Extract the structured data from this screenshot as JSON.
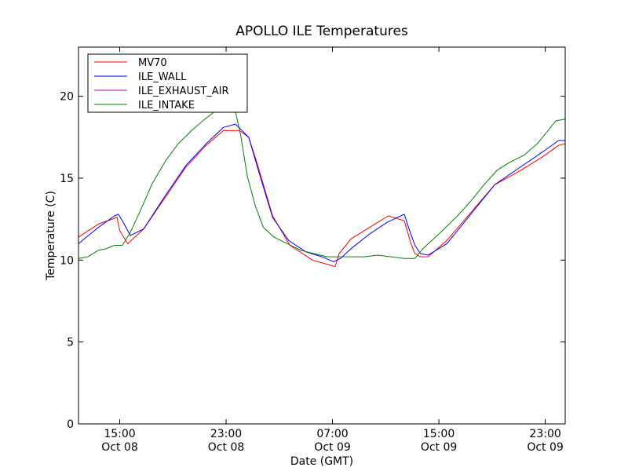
{
  "chart_data": {
    "type": "line",
    "title": "APOLLO ILE Temperatures",
    "xlabel": "Date (GMT)",
    "ylabel": "Temperature (C)",
    "ylim": [
      0,
      23
    ],
    "xlim": [
      11.9,
      48.5
    ],
    "grid": false,
    "legend_placement": "top-left",
    "y_ticks": [
      "0",
      "5",
      "10",
      "15",
      "20"
    ],
    "y_tick_values": [
      0,
      5,
      10,
      15,
      20
    ],
    "x_ticks": [
      {
        "t": 15,
        "time": "15:00",
        "date": "Oct 08"
      },
      {
        "t": 23,
        "time": "23:00",
        "date": "Oct 08"
      },
      {
        "t": 31,
        "time": "07:00",
        "date": "Oct 09"
      },
      {
        "t": 39,
        "time": "15:00",
        "date": "Oct 09"
      },
      {
        "t": 47,
        "time": "23:00",
        "date": "Oct 09"
      }
    ],
    "series": [
      {
        "name": "MV70",
        "color": "#ff0000",
        "x": [
          11.9,
          13.4,
          14.8,
          15.0,
          15.6,
          16.8,
          18.4,
          20.0,
          21.5,
          22.8,
          24.0,
          24.7,
          25.3,
          26.5,
          27.8,
          29.5,
          30.8,
          31.2,
          31.5,
          32.4,
          33.8,
          35.2,
          36.4,
          36.9,
          37.2,
          37.6,
          38.2,
          39.6,
          41.4,
          43.2,
          45.0,
          46.8,
          48.0,
          48.5
        ],
        "y": [
          11.4,
          12.2,
          12.6,
          11.8,
          11.0,
          11.9,
          13.8,
          15.7,
          17.0,
          17.9,
          17.9,
          17.5,
          16.0,
          12.7,
          10.9,
          10.0,
          9.7,
          9.6,
          10.4,
          11.3,
          12.0,
          12.7,
          12.4,
          11.0,
          10.4,
          10.2,
          10.2,
          11.2,
          12.9,
          14.6,
          15.4,
          16.3,
          17.0,
          17.1
        ]
      },
      {
        "name": "ILE_WALL",
        "color": "#0000ff",
        "x": [
          11.9,
          13.4,
          14.6,
          14.9,
          15.2,
          15.8,
          16.8,
          18.4,
          20.0,
          21.5,
          22.8,
          23.7,
          24.7,
          25.6,
          26.5,
          27.7,
          29.0,
          30.2,
          31.1,
          31.6,
          32.4,
          33.8,
          35.1,
          36.4,
          36.8,
          37.2,
          37.6,
          38.2,
          39.6,
          41.4,
          43.2,
          45.0,
          46.8,
          48.0,
          48.5
        ],
        "y": [
          11.0,
          12.0,
          12.7,
          12.8,
          12.4,
          11.5,
          11.9,
          13.9,
          15.8,
          17.1,
          18.1,
          18.3,
          17.5,
          15.0,
          12.6,
          11.2,
          10.5,
          10.2,
          9.9,
          10.1,
          10.7,
          11.6,
          12.3,
          12.8,
          11.8,
          10.9,
          10.4,
          10.3,
          11.0,
          12.8,
          14.6,
          15.6,
          16.6,
          17.3,
          17.3
        ]
      },
      {
        "name": "ILE_EXHAUST_AIR",
        "color": "#bf00bf",
        "x": [],
        "y": []
      },
      {
        "name": "ILE_INTAKE",
        "color": "#008000",
        "x": [
          11.9,
          12.6,
          13.4,
          14.0,
          14.6,
          15.2,
          15.8,
          16.6,
          17.4,
          18.4,
          19.4,
          20.4,
          21.4,
          22.2,
          22.9,
          23.5,
          24.1,
          24.6,
          25.2,
          25.8,
          26.6,
          27.6,
          28.6,
          29.6,
          30.6,
          31.6,
          32.4,
          33.4,
          34.4,
          35.4,
          36.4,
          37.2,
          37.8,
          38.6,
          39.4,
          40.4,
          41.4,
          42.4,
          43.4,
          44.4,
          45.4,
          46.4,
          47.2,
          47.8,
          48.5
        ],
        "y": [
          10.1,
          10.2,
          10.6,
          10.7,
          10.9,
          10.9,
          11.7,
          13.1,
          14.6,
          16.0,
          17.1,
          17.9,
          18.6,
          19.1,
          19.6,
          19.8,
          17.6,
          15.1,
          13.3,
          12.0,
          11.4,
          11.0,
          10.6,
          10.4,
          10.2,
          10.2,
          10.2,
          10.2,
          10.3,
          10.2,
          10.1,
          10.1,
          10.7,
          11.3,
          11.9,
          12.7,
          13.6,
          14.6,
          15.5,
          16.0,
          16.4,
          17.1,
          17.9,
          18.5,
          18.6
        ]
      }
    ]
  }
}
